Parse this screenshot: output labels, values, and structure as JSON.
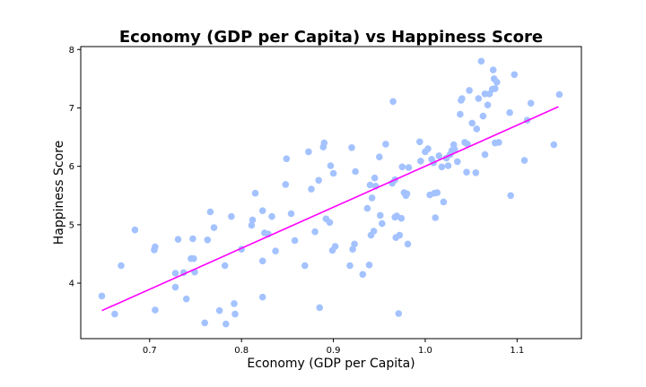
{
  "chart_data": {
    "type": "scatter",
    "title": "Economy (GDP per Capita) vs Happiness Score",
    "xlabel": "Economy (GDP per Capita)",
    "ylabel": "Happiness Score",
    "xlim": [
      0.625,
      1.17
    ],
    "ylim": [
      3.05,
      8.05
    ],
    "x_ticks": [
      0.7,
      0.8,
      0.9,
      1.0,
      1.1
    ],
    "x_tick_labels": [
      "0.7",
      "0.8",
      "0.9",
      "1.0",
      "1.1"
    ],
    "y_ticks": [
      4,
      5,
      6,
      7,
      8
    ],
    "y_tick_labels": [
      "4",
      "5",
      "6",
      "7",
      "8"
    ],
    "grid": false,
    "point_color": "#a3c2ff",
    "line_color": "#ff00ff",
    "trendline": {
      "x": [
        0.648,
        1.145
      ],
      "y": [
        3.53,
        7.02
      ]
    },
    "points": [
      [
        0.648,
        3.78
      ],
      [
        0.662,
        3.47
      ],
      [
        0.669,
        4.3
      ],
      [
        0.684,
        4.91
      ],
      [
        0.705,
        4.57
      ],
      [
        0.706,
        4.62
      ],
      [
        0.706,
        3.54
      ],
      [
        0.728,
        4.17
      ],
      [
        0.728,
        3.93
      ],
      [
        0.731,
        4.75
      ],
      [
        0.737,
        4.18
      ],
      [
        0.74,
        3.73
      ],
      [
        0.745,
        4.42
      ],
      [
        0.747,
        4.76
      ],
      [
        0.748,
        4.42
      ],
      [
        0.749,
        4.19
      ],
      [
        0.76,
        3.32
      ],
      [
        0.763,
        4.74
      ],
      [
        0.766,
        5.22
      ],
      [
        0.77,
        4.95
      ],
      [
        0.776,
        3.53
      ],
      [
        0.782,
        4.3
      ],
      [
        0.783,
        3.3
      ],
      [
        0.789,
        5.14
      ],
      [
        0.792,
        3.65
      ],
      [
        0.793,
        3.47
      ],
      [
        0.8,
        4.58
      ],
      [
        0.811,
        4.99
      ],
      [
        0.812,
        5.08
      ],
      [
        0.815,
        5.54
      ],
      [
        0.823,
        5.24
      ],
      [
        0.823,
        4.38
      ],
      [
        0.823,
        3.76
      ],
      [
        0.825,
        4.86
      ],
      [
        0.829,
        4.84
      ],
      [
        0.833,
        5.14
      ],
      [
        0.837,
        4.55
      ],
      [
        0.848,
        5.69
      ],
      [
        0.849,
        6.13
      ],
      [
        0.854,
        5.19
      ],
      [
        0.858,
        4.73
      ],
      [
        0.869,
        4.3
      ],
      [
        0.873,
        6.25
      ],
      [
        0.876,
        5.61
      ],
      [
        0.88,
        4.88
      ],
      [
        0.884,
        5.76
      ],
      [
        0.885,
        3.58
      ],
      [
        0.889,
        6.33
      ],
      [
        0.89,
        6.4
      ],
      [
        0.892,
        5.1
      ],
      [
        0.896,
        5.04
      ],
      [
        0.897,
        6.01
      ],
      [
        0.899,
        4.56
      ],
      [
        0.9,
        5.88
      ],
      [
        0.902,
        4.63
      ],
      [
        0.918,
        4.3
      ],
      [
        0.92,
        6.32
      ],
      [
        0.921,
        4.58
      ],
      [
        0.923,
        4.67
      ],
      [
        0.924,
        5.91
      ],
      [
        0.932,
        4.15
      ],
      [
        0.937,
        5.28
      ],
      [
        0.939,
        4.31
      ],
      [
        0.94,
        5.68
      ],
      [
        0.941,
        4.82
      ],
      [
        0.942,
        5.46
      ],
      [
        0.944,
        4.89
      ],
      [
        0.945,
        5.8
      ],
      [
        0.946,
        5.66
      ],
      [
        0.95,
        6.16
      ],
      [
        0.951,
        5.16
      ],
      [
        0.953,
        5.02
      ],
      [
        0.957,
        6.38
      ],
      [
        0.964,
        5.71
      ],
      [
        0.965,
        7.11
      ],
      [
        0.967,
        5.13
      ],
      [
        0.967,
        5.77
      ],
      [
        0.968,
        4.78
      ],
      [
        0.969,
        5.15
      ],
      [
        0.971,
        3.48
      ],
      [
        0.972,
        4.82
      ],
      [
        0.974,
        5.11
      ],
      [
        0.975,
        5.99
      ],
      [
        0.977,
        5.55
      ],
      [
        0.979,
        5.5
      ],
      [
        0.98,
        5.53
      ],
      [
        0.981,
        4.67
      ],
      [
        0.982,
        5.98
      ],
      [
        0.994,
        6.42
      ],
      [
        0.995,
        6.09
      ],
      [
        1.0,
        6.25
      ],
      [
        1.003,
        6.3
      ],
      [
        1.005,
        5.51
      ],
      [
        1.007,
        6.12
      ],
      [
        1.009,
        6.06
      ],
      [
        1.01,
        5.54
      ],
      [
        1.011,
        5.12
      ],
      [
        1.013,
        5.55
      ],
      [
        1.015,
        6.18
      ],
      [
        1.018,
        5.99
      ],
      [
        1.02,
        5.39
      ],
      [
        1.023,
        6.14
      ],
      [
        1.025,
        6.01
      ],
      [
        1.027,
        6.2
      ],
      [
        1.029,
        6.27
      ],
      [
        1.031,
        6.37
      ],
      [
        1.032,
        6.29
      ],
      [
        1.035,
        6.08
      ],
      [
        1.038,
        6.89
      ],
      [
        1.039,
        7.13
      ],
      [
        1.04,
        7.16
      ],
      [
        1.043,
        6.41
      ],
      [
        1.045,
        5.9
      ],
      [
        1.046,
        6.38
      ],
      [
        1.048,
        7.3
      ],
      [
        1.051,
        6.74
      ],
      [
        1.055,
        5.89
      ],
      [
        1.056,
        6.64
      ],
      [
        1.058,
        7.16
      ],
      [
        1.061,
        7.8
      ],
      [
        1.063,
        6.86
      ],
      [
        1.065,
        7.24
      ],
      [
        1.065,
        6.2
      ],
      [
        1.068,
        7.05
      ],
      [
        1.07,
        7.24
      ],
      [
        1.073,
        7.32
      ],
      [
        1.074,
        7.65
      ],
      [
        1.075,
        7.5
      ],
      [
        1.076,
        7.33
      ],
      [
        1.076,
        6.4
      ],
      [
        1.078,
        7.44
      ],
      [
        1.08,
        6.41
      ],
      [
        1.092,
        6.92
      ],
      [
        1.093,
        5.5
      ],
      [
        1.097,
        7.57
      ],
      [
        1.108,
        6.1
      ],
      [
        1.111,
        6.79
      ],
      [
        1.115,
        7.08
      ],
      [
        1.14,
        6.37
      ],
      [
        1.146,
        7.23
      ]
    ]
  }
}
